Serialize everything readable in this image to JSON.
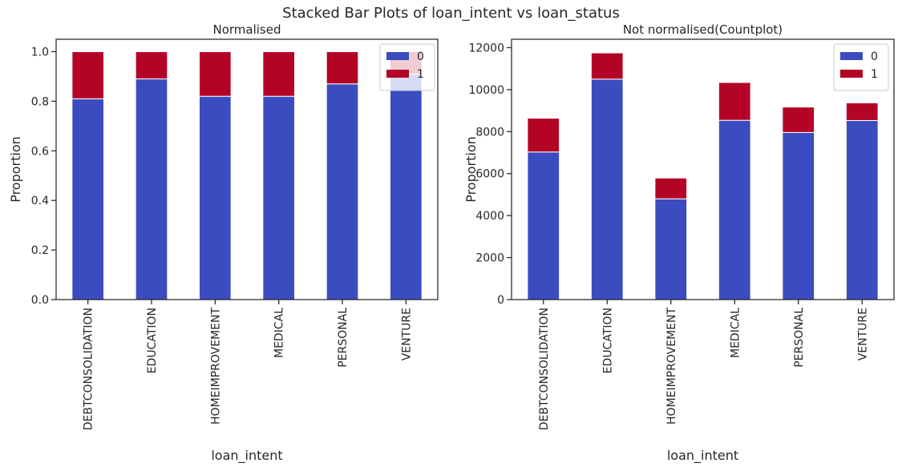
{
  "figure": {
    "title": "Stacked Bar Plots of loan_intent vs loan_status"
  },
  "colors": {
    "status_0": "#3b4cc0",
    "status_1": "#b40426",
    "axis": "#262626",
    "bar_edge": "#ffffff"
  },
  "chart_data": [
    {
      "type": "bar",
      "stacked": true,
      "title": "Normalised",
      "xlabel": "loan_intent",
      "ylabel": "Proportion",
      "categories": [
        "DEBTCONSOLIDATION",
        "EDUCATION",
        "HOMEIMPROVEMENT",
        "MEDICAL",
        "PERSONAL",
        "VENTURE"
      ],
      "series": [
        {
          "name": "0",
          "values": [
            0.81,
            0.89,
            0.82,
            0.82,
            0.87,
            0.91
          ]
        },
        {
          "name": "1",
          "values": [
            0.19,
            0.11,
            0.18,
            0.18,
            0.13,
            0.09
          ]
        }
      ],
      "ylim": [
        0,
        1.05
      ],
      "yticks": [
        0.0,
        0.2,
        0.4,
        0.6,
        0.8,
        1.0
      ],
      "ytick_labels": [
        "0.0",
        "0.2",
        "0.4",
        "0.6",
        "0.8",
        "1.0"
      ],
      "legend": "top-right",
      "grid": false
    },
    {
      "type": "bar",
      "stacked": true,
      "title": "Not normalised(Countplot)",
      "xlabel": "loan_intent",
      "ylabel": "Proportion",
      "categories": [
        "DEBTCONSOLIDATION",
        "EDUCATION",
        "HOMEIMPROVEMENT",
        "MEDICAL",
        "PERSONAL",
        "VENTURE"
      ],
      "series": [
        {
          "name": "0",
          "values": [
            7030,
            10500,
            4800,
            8540,
            7960,
            8530
          ]
        },
        {
          "name": "1",
          "values": [
            1610,
            1250,
            990,
            1800,
            1210,
            840
          ]
        }
      ],
      "ylim": [
        0,
        12400
      ],
      "yticks": [
        0,
        2000,
        4000,
        6000,
        8000,
        10000,
        12000
      ],
      "ytick_labels": [
        "0",
        "2000",
        "4000",
        "6000",
        "8000",
        "10000",
        "12000"
      ],
      "legend": "top-right",
      "grid": false
    }
  ]
}
